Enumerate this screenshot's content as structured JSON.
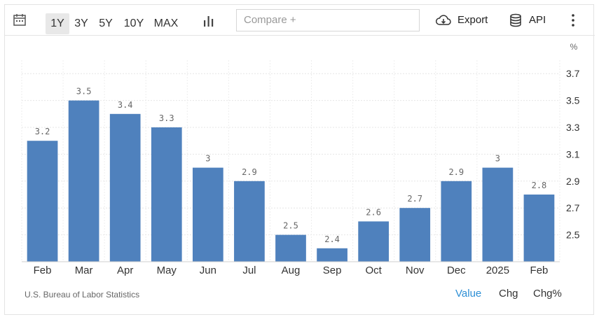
{
  "toolbar": {
    "ranges": [
      "1Y",
      "3Y",
      "5Y",
      "10Y",
      "MAX"
    ],
    "active_range": "1Y",
    "compare_placeholder": "Compare +",
    "export_label": "Export",
    "api_label": "API"
  },
  "chart_data": {
    "type": "bar",
    "categories": [
      "Feb",
      "Mar",
      "Apr",
      "May",
      "Jun",
      "Jul",
      "Aug",
      "Sep",
      "Oct",
      "Nov",
      "Dec",
      "2025",
      "Feb"
    ],
    "values": [
      3.2,
      3.5,
      3.4,
      3.3,
      3,
      2.9,
      2.5,
      2.4,
      2.6,
      2.7,
      2.9,
      3,
      2.8
    ],
    "unit_label": "%",
    "yticks": [
      3.7,
      3.5,
      3.3,
      3.1,
      2.9,
      2.7,
      2.5
    ],
    "ylim": [
      2.3,
      3.8
    ],
    "y_axis_side": "right",
    "grid": true,
    "bar_color": "#4f81bd"
  },
  "footer": {
    "source": "U.S. Bureau of Labor Statistics",
    "views": [
      "Value",
      "Chg",
      "Chg%"
    ],
    "active_view": "Value"
  }
}
